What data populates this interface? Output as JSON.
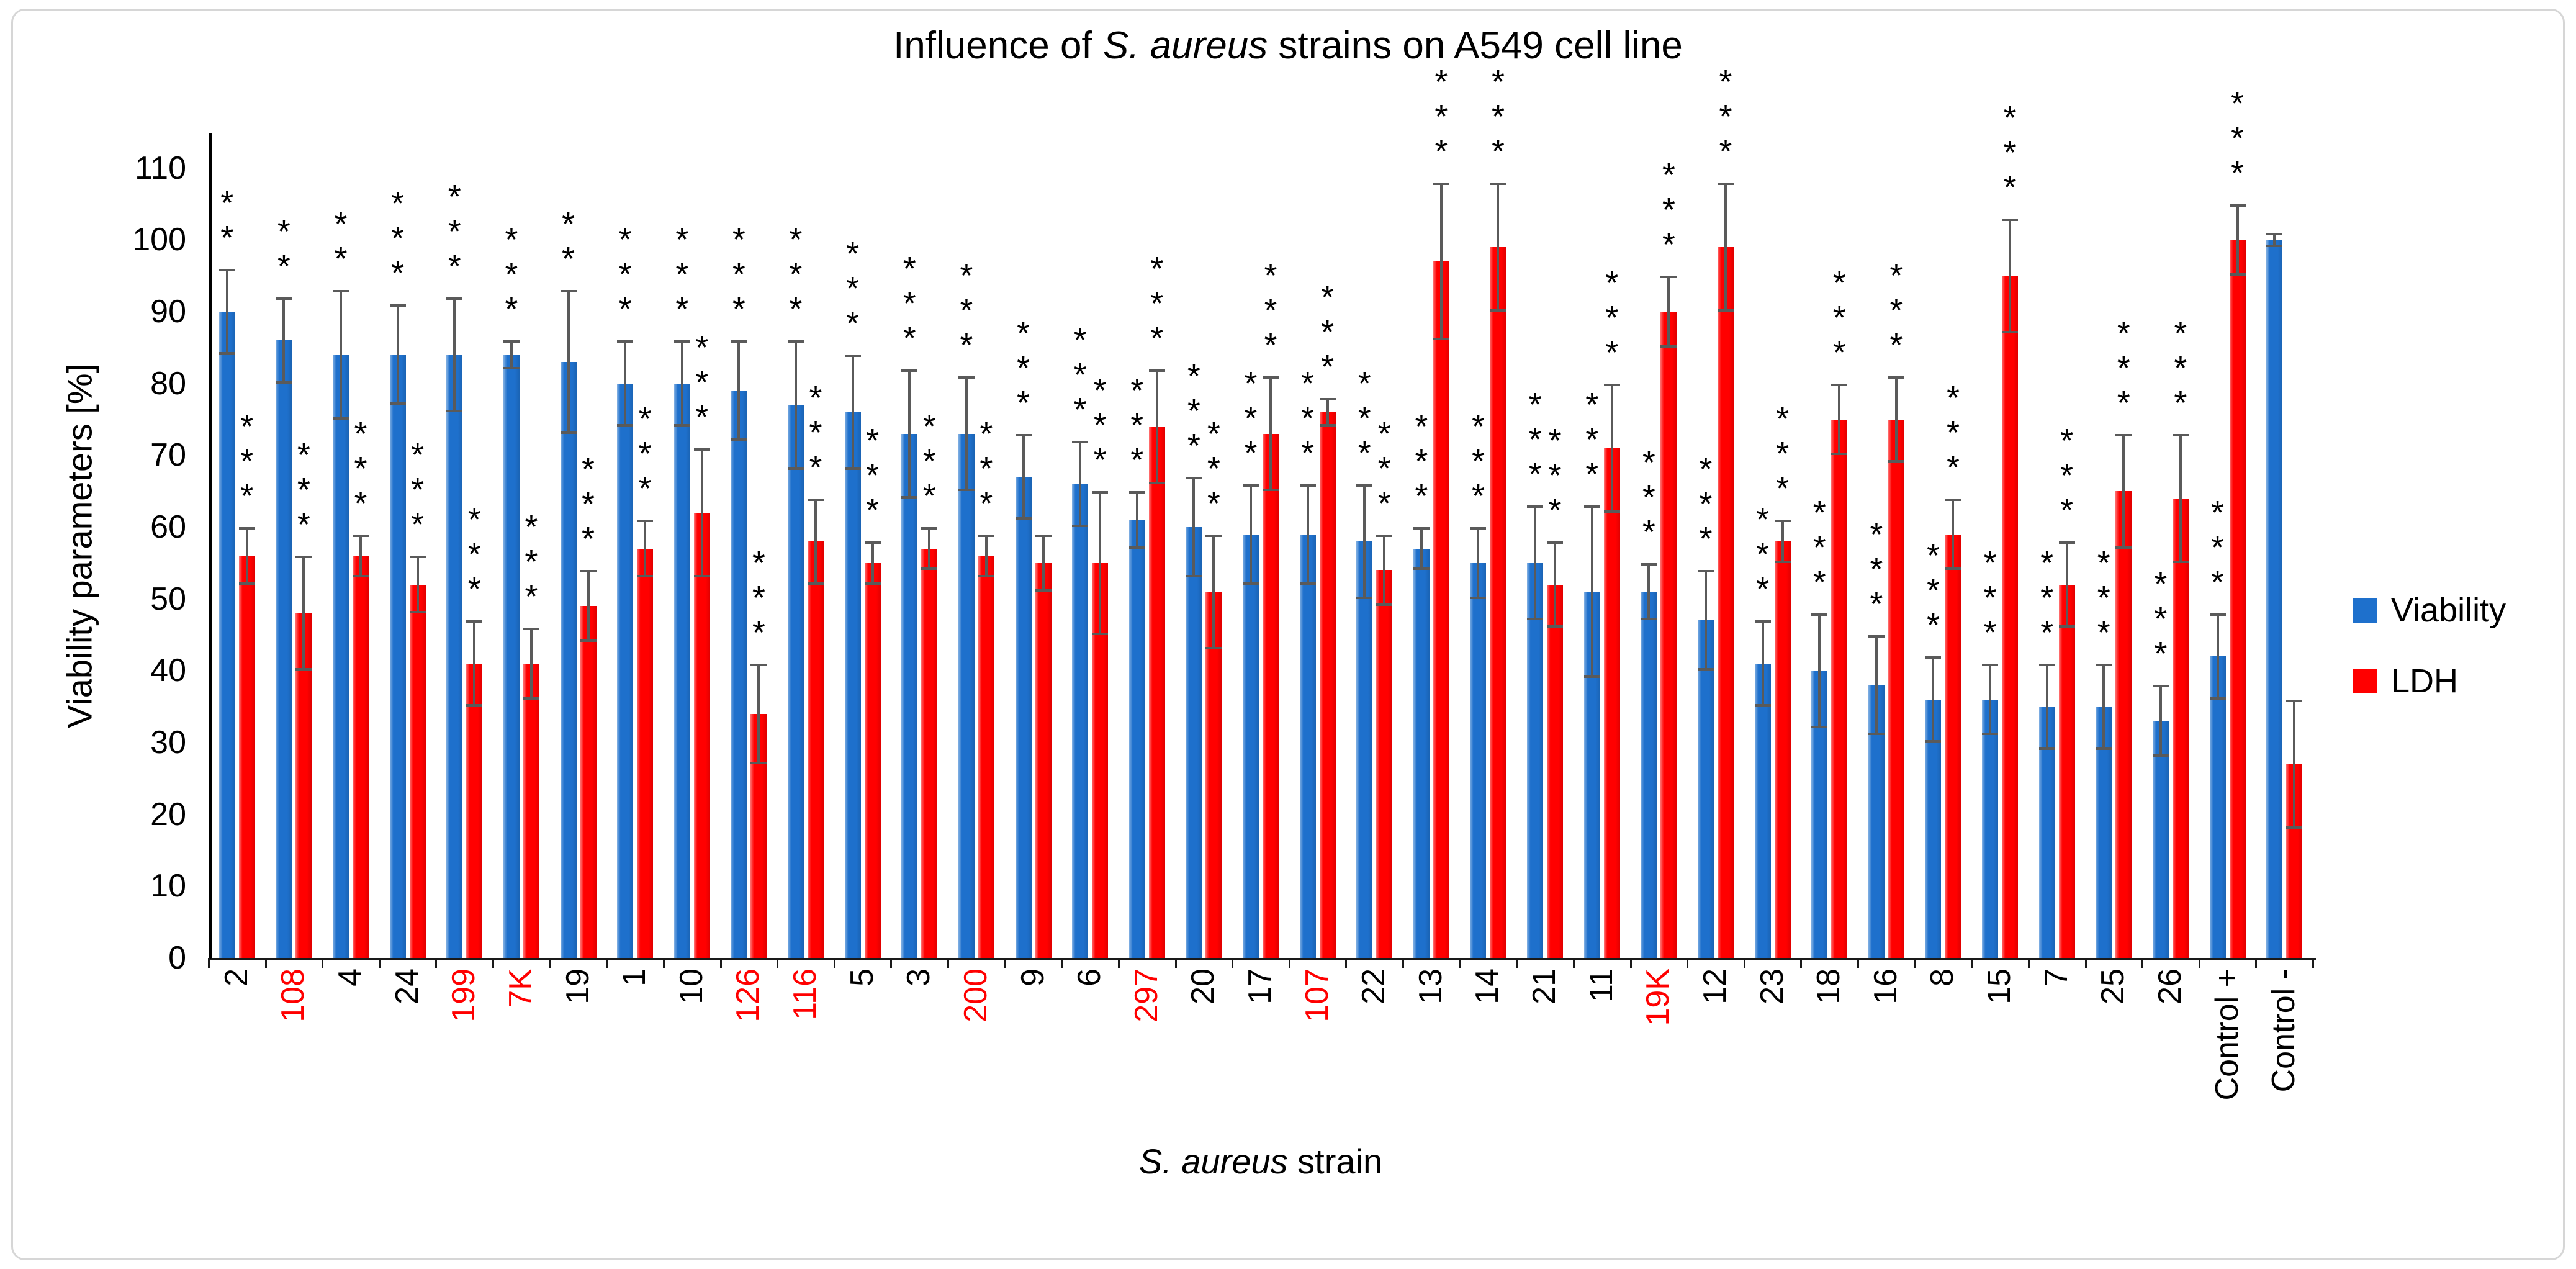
{
  "title": {
    "prefix": "Influence of ",
    "italic": "S. aureus",
    "suffix": " strains on A549 cell line"
  },
  "x_axis_title": {
    "italic": "S. aureus",
    "suffix": " strain"
  },
  "chart_data": {
    "type": "bar",
    "title": "Influence of S. aureus strains on A549 cell line",
    "xlabel": "S. aureus strain",
    "ylabel": "Viability parameters [%]",
    "ylim": [
      0,
      115
    ],
    "yticks": [
      0,
      10,
      20,
      30,
      40,
      50,
      60,
      70,
      80,
      90,
      100,
      110
    ],
    "grid": false,
    "legend_position": "right",
    "significance_note_symbols": [
      "**",
      "***"
    ],
    "label_red_color": "#FF0000",
    "categories": [
      "2",
      "108",
      "4",
      "24",
      "199",
      "7K",
      "19",
      "1",
      "10",
      "126",
      "116",
      "5",
      "3",
      "200",
      "9",
      "6",
      "297",
      "20",
      "17",
      "107",
      "22",
      "13",
      "14",
      "21",
      "11",
      "19K",
      "12",
      "23",
      "18",
      "16",
      "8",
      "15",
      "7",
      "25",
      "26",
      "Control +",
      "Control -"
    ],
    "red_categories": [
      "108",
      "199",
      "7K",
      "126",
      "116",
      "200",
      "297",
      "107",
      "19K"
    ],
    "series": [
      {
        "name": "Viability",
        "color": "#1E70CC",
        "values": [
          90,
          86,
          84,
          84,
          84,
          84,
          83,
          80,
          80,
          79,
          77,
          76,
          73,
          73,
          67,
          66,
          61,
          60,
          59,
          59,
          58,
          57,
          55,
          55,
          51,
          51,
          47,
          41,
          40,
          38,
          36,
          36,
          35,
          35,
          33,
          42,
          100
        ],
        "errors": [
          6,
          6,
          9,
          7,
          8,
          2,
          10,
          6,
          6,
          7,
          9,
          8,
          9,
          8,
          6,
          6,
          4,
          7,
          7,
          7,
          8,
          3,
          5,
          8,
          12,
          4,
          7,
          6,
          8,
          7,
          6,
          5,
          6,
          6,
          5,
          6,
          1
        ],
        "significance": [
          "**",
          "**",
          "**",
          "***",
          "***",
          "***",
          "**",
          "***",
          "***",
          "***",
          "***",
          "***",
          "***",
          "***",
          "***",
          "***",
          "***",
          "***",
          "***",
          "***",
          "***",
          "***",
          "***",
          "***",
          "***",
          "***",
          "***",
          "***",
          "***",
          "***",
          "***",
          "***",
          "***",
          "***",
          "***",
          "***",
          ""
        ]
      },
      {
        "name": "LDH",
        "color": "#FF0000",
        "values": [
          56,
          48,
          56,
          52,
          41,
          41,
          49,
          57,
          62,
          34,
          58,
          55,
          57,
          56,
          55,
          55,
          74,
          51,
          73,
          76,
          54,
          97,
          99,
          52,
          71,
          90,
          99,
          58,
          75,
          75,
          59,
          95,
          52,
          65,
          64,
          100,
          27
        ],
        "errors": [
          4,
          8,
          3,
          4,
          6,
          5,
          5,
          4,
          9,
          7,
          6,
          3,
          3,
          3,
          4,
          10,
          8,
          8,
          8,
          2,
          5,
          11,
          9,
          6,
          9,
          5,
          9,
          3,
          5,
          6,
          5,
          8,
          6,
          8,
          9,
          5,
          9
        ],
        "significance": [
          "***",
          "***",
          "***",
          "***",
          "***",
          "***",
          "***",
          "***",
          "***",
          "***",
          "***",
          "***",
          "***",
          "***",
          "",
          "***",
          "***",
          "***",
          "***",
          "***",
          "***",
          "***",
          "***",
          "***",
          "***",
          "***",
          "***",
          "***",
          "***",
          "***",
          "***",
          "***",
          "***",
          "***",
          "***",
          "***",
          ""
        ]
      }
    ]
  }
}
